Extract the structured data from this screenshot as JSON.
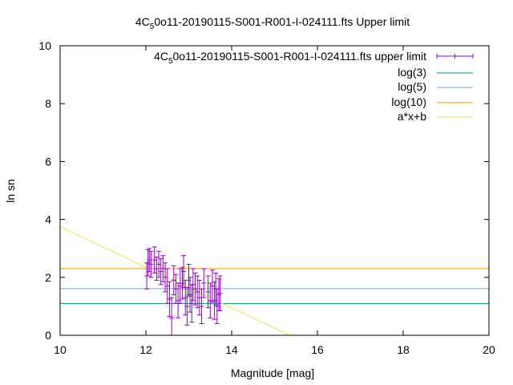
{
  "chart_data": {
    "type": "scatter",
    "title_prefix": "4C",
    "title_sub": "5",
    "title_suffix": "0o11-20190115-S001-R001-I-024111.fts Upper limit",
    "xlabel": "Magnitude [mag]",
    "ylabel": "ln sn",
    "xlim": [
      10,
      20
    ],
    "ylim": [
      0,
      10
    ],
    "x_ticks": [
      "10",
      "12",
      "14",
      "16",
      "18",
      "20"
    ],
    "y_ticks": [
      "0",
      "2",
      "4",
      "6",
      "8",
      "10"
    ],
    "grid": false,
    "legend_position": "top-right",
    "series": [
      {
        "name_prefix": "4C",
        "name_sub": "5",
        "name_suffix": "0o11-20190115-S001-R001-I-024111.fts upper limit",
        "kind": "errorbars",
        "color": "#9400d3",
        "points": [
          {
            "x": 12.02,
            "y": 2.05,
            "err": 0.45
          },
          {
            "x": 12.05,
            "y": 2.5,
            "err": 0.45
          },
          {
            "x": 12.08,
            "y": 2.6,
            "err": 0.4
          },
          {
            "x": 12.12,
            "y": 2.45,
            "err": 0.45
          },
          {
            "x": 12.2,
            "y": 2.6,
            "err": 0.45
          },
          {
            "x": 12.25,
            "y": 2.3,
            "err": 0.4
          },
          {
            "x": 12.3,
            "y": 2.45,
            "err": 0.45
          },
          {
            "x": 12.35,
            "y": 2.2,
            "err": 0.45
          },
          {
            "x": 12.4,
            "y": 2.3,
            "err": 0.45
          },
          {
            "x": 12.45,
            "y": 2.0,
            "err": 0.5
          },
          {
            "x": 12.5,
            "y": 1.7,
            "err": 0.6
          },
          {
            "x": 12.55,
            "y": 1.25,
            "err": 0.6
          },
          {
            "x": 12.6,
            "y": 0.6,
            "err": 0.7
          },
          {
            "x": 12.65,
            "y": 1.9,
            "err": 0.5
          },
          {
            "x": 12.7,
            "y": 1.6,
            "err": 0.5
          },
          {
            "x": 12.75,
            "y": 1.2,
            "err": 0.6
          },
          {
            "x": 12.8,
            "y": 1.7,
            "err": 0.6
          },
          {
            "x": 12.85,
            "y": 1.8,
            "err": 0.55
          },
          {
            "x": 12.88,
            "y": 2.2,
            "err": 0.55
          },
          {
            "x": 12.92,
            "y": 1.3,
            "err": 0.6
          },
          {
            "x": 12.96,
            "y": 1.0,
            "err": 0.65
          },
          {
            "x": 13.0,
            "y": 1.9,
            "err": 0.55
          },
          {
            "x": 13.03,
            "y": 1.4,
            "err": 0.6
          },
          {
            "x": 13.07,
            "y": 1.1,
            "err": 0.65
          },
          {
            "x": 13.1,
            "y": 1.75,
            "err": 0.55
          },
          {
            "x": 13.15,
            "y": 1.6,
            "err": 0.55
          },
          {
            "x": 13.2,
            "y": 1.5,
            "err": 0.55
          },
          {
            "x": 13.25,
            "y": 1.3,
            "err": 0.6
          },
          {
            "x": 13.3,
            "y": 1.0,
            "err": 0.6
          },
          {
            "x": 13.35,
            "y": 1.8,
            "err": 0.5
          },
          {
            "x": 13.45,
            "y": 1.5,
            "err": 0.55
          },
          {
            "x": 13.5,
            "y": 1.2,
            "err": 0.6
          },
          {
            "x": 13.55,
            "y": 1.7,
            "err": 0.55
          },
          {
            "x": 13.6,
            "y": 1.2,
            "err": 0.65
          },
          {
            "x": 13.63,
            "y": 1.6,
            "err": 0.55
          },
          {
            "x": 13.66,
            "y": 1.0,
            "err": 0.6
          },
          {
            "x": 13.7,
            "y": 1.4,
            "err": 0.55
          },
          {
            "x": 13.73,
            "y": 1.45,
            "err": 0.6
          }
        ]
      },
      {
        "name": "log(3)",
        "kind": "hline",
        "y": 1.0986,
        "color": "#009e73"
      },
      {
        "name": "log(5)",
        "kind": "hline",
        "y": 1.6094,
        "color": "#56b4e9"
      },
      {
        "name": "log(10)",
        "kind": "hline",
        "y": 2.3026,
        "color": "#e69f00"
      },
      {
        "name": "a*x+b",
        "kind": "fit_line",
        "x": [
          10,
          15.35
        ],
        "y": [
          3.75,
          0
        ],
        "color": "#f0e442"
      }
    ]
  }
}
